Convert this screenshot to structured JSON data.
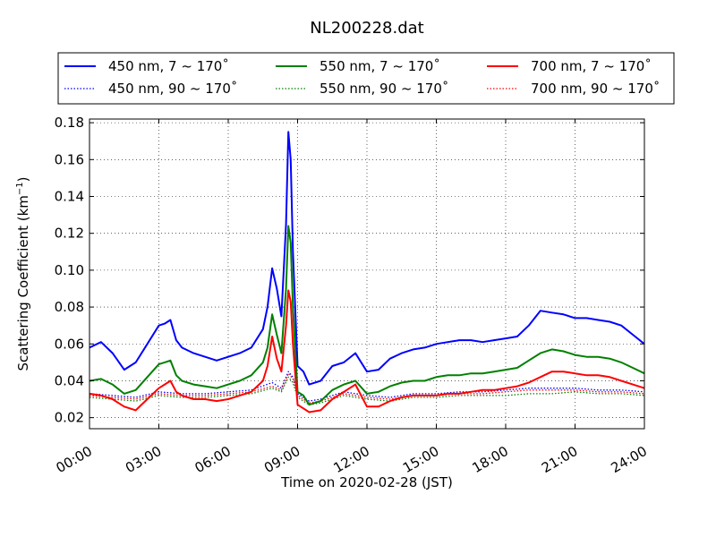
{
  "chart_data": {
    "type": "line",
    "title": "NL200228.dat",
    "xlabel": "Time on 2020-02-28 (JST)",
    "ylabel": "Scattering Coefficient (km",
    "ylabel_sup": "−1",
    "ylabel_close": ")",
    "xlim": [
      0,
      24
    ],
    "ylim": [
      0.014,
      0.182
    ],
    "grid": true,
    "legend_placement": "top",
    "x_ticks": [
      0,
      3,
      6,
      9,
      12,
      15,
      18,
      21,
      24
    ],
    "x_tick_labels": [
      "00:00",
      "03:00",
      "06:00",
      "09:00",
      "12:00",
      "15:00",
      "18:00",
      "21:00",
      "24:00"
    ],
    "y_ticks": [
      0.02,
      0.04,
      0.06,
      0.08,
      0.1,
      0.12,
      0.14,
      0.16,
      0.18
    ],
    "y_tick_labels": [
      "0.02",
      "0.04",
      "0.06",
      "0.08",
      "0.10",
      "0.12",
      "0.14",
      "0.16",
      "0.18"
    ],
    "series": [
      {
        "name": "450 nm, 7 ~ 170˚",
        "color": "#0000ff",
        "style": "solid",
        "x": [
          0,
          0.5,
          1,
          1.5,
          2,
          2.5,
          3,
          3.25,
          3.5,
          3.75,
          4,
          4.5,
          5,
          5.5,
          6,
          6.5,
          7,
          7.5,
          7.7,
          7.9,
          8.1,
          8.3,
          8.5,
          8.6,
          8.7,
          8.8,
          9,
          9.25,
          9.5,
          10,
          10.5,
          11,
          11.5,
          12,
          12.5,
          13,
          13.5,
          14,
          14.5,
          15,
          15.5,
          16,
          16.5,
          17,
          17.5,
          18,
          18.5,
          19,
          19.5,
          20,
          20.5,
          21,
          21.5,
          22,
          22.5,
          23,
          23.5,
          24
        ],
        "y": [
          0.058,
          0.061,
          0.055,
          0.046,
          0.05,
          0.06,
          0.07,
          0.071,
          0.073,
          0.062,
          0.058,
          0.055,
          0.053,
          0.051,
          0.053,
          0.055,
          0.058,
          0.068,
          0.08,
          0.101,
          0.09,
          0.075,
          0.125,
          0.175,
          0.16,
          0.11,
          0.048,
          0.045,
          0.038,
          0.04,
          0.048,
          0.05,
          0.055,
          0.045,
          0.046,
          0.052,
          0.055,
          0.057,
          0.058,
          0.06,
          0.061,
          0.062,
          0.062,
          0.061,
          0.062,
          0.063,
          0.064,
          0.07,
          0.078,
          0.077,
          0.076,
          0.074,
          0.074,
          0.073,
          0.072,
          0.07,
          0.065,
          0.06
        ]
      },
      {
        "name": "450 nm, 90 ~ 170˚",
        "color": "#0000ff",
        "style": "dotted",
        "x": [
          0,
          1,
          2,
          3,
          4,
          5,
          6,
          7,
          7.9,
          8.3,
          8.6,
          8.8,
          9,
          9.5,
          10,
          11,
          12,
          13,
          14,
          15,
          16,
          17,
          18,
          19,
          20,
          21,
          22,
          23,
          24
        ],
        "y": [
          0.033,
          0.032,
          0.031,
          0.034,
          0.033,
          0.033,
          0.034,
          0.035,
          0.039,
          0.036,
          0.045,
          0.042,
          0.033,
          0.029,
          0.03,
          0.034,
          0.032,
          0.031,
          0.033,
          0.033,
          0.034,
          0.034,
          0.035,
          0.036,
          0.036,
          0.036,
          0.035,
          0.035,
          0.034
        ]
      },
      {
        "name": "550 nm, 7 ~ 170˚",
        "color": "#008000",
        "style": "solid",
        "x": [
          0,
          0.5,
          1,
          1.5,
          2,
          2.5,
          3,
          3.25,
          3.5,
          3.75,
          4,
          4.5,
          5,
          5.5,
          6,
          6.5,
          7,
          7.5,
          7.7,
          7.9,
          8.1,
          8.3,
          8.5,
          8.6,
          8.7,
          8.8,
          9,
          9.25,
          9.5,
          10,
          10.5,
          11,
          11.5,
          12,
          12.5,
          13,
          13.5,
          14,
          14.5,
          15,
          15.5,
          16,
          16.5,
          17,
          17.5,
          18,
          18.5,
          19,
          19.5,
          20,
          20.5,
          21,
          21.5,
          22,
          22.5,
          23,
          23.5,
          24
        ],
        "y": [
          0.04,
          0.041,
          0.038,
          0.033,
          0.035,
          0.042,
          0.049,
          0.05,
          0.051,
          0.043,
          0.04,
          0.038,
          0.037,
          0.036,
          0.038,
          0.04,
          0.043,
          0.05,
          0.058,
          0.076,
          0.065,
          0.055,
          0.09,
          0.124,
          0.115,
          0.08,
          0.034,
          0.032,
          0.027,
          0.029,
          0.035,
          0.038,
          0.04,
          0.033,
          0.034,
          0.037,
          0.039,
          0.04,
          0.04,
          0.042,
          0.043,
          0.043,
          0.044,
          0.044,
          0.045,
          0.046,
          0.047,
          0.051,
          0.055,
          0.057,
          0.056,
          0.054,
          0.053,
          0.053,
          0.052,
          0.05,
          0.047,
          0.044
        ]
      },
      {
        "name": "550 nm, 90 ~ 170˚",
        "color": "#008000",
        "style": "dotted",
        "x": [
          0,
          1,
          2,
          3,
          4,
          5,
          6,
          7,
          7.9,
          8.3,
          8.6,
          8.8,
          9,
          9.5,
          10,
          11,
          12,
          13,
          14,
          15,
          16,
          17,
          18,
          19,
          20,
          21,
          22,
          23,
          24
        ],
        "y": [
          0.031,
          0.03,
          0.029,
          0.032,
          0.031,
          0.031,
          0.032,
          0.033,
          0.036,
          0.034,
          0.042,
          0.039,
          0.031,
          0.027,
          0.028,
          0.032,
          0.03,
          0.029,
          0.031,
          0.031,
          0.032,
          0.032,
          0.032,
          0.033,
          0.033,
          0.034,
          0.033,
          0.033,
          0.032
        ]
      },
      {
        "name": "700 nm, 7 ~ 170˚",
        "color": "#ff0000",
        "style": "solid",
        "x": [
          0,
          0.5,
          1,
          1.5,
          2,
          2.5,
          3,
          3.25,
          3.5,
          3.75,
          4,
          4.5,
          5,
          5.5,
          6,
          6.5,
          7,
          7.5,
          7.7,
          7.9,
          8.1,
          8.3,
          8.5,
          8.6,
          8.7,
          8.8,
          9,
          9.25,
          9.5,
          10,
          10.5,
          11,
          11.5,
          12,
          12.5,
          13,
          13.5,
          14,
          14.5,
          15,
          15.5,
          16,
          16.5,
          17,
          17.5,
          18,
          18.5,
          19,
          19.5,
          20,
          20.5,
          21,
          21.5,
          22,
          22.5,
          23,
          23.5,
          24
        ],
        "y": [
          0.033,
          0.032,
          0.03,
          0.026,
          0.024,
          0.03,
          0.036,
          0.038,
          0.04,
          0.034,
          0.032,
          0.03,
          0.03,
          0.029,
          0.03,
          0.032,
          0.034,
          0.04,
          0.048,
          0.064,
          0.052,
          0.045,
          0.07,
          0.089,
          0.083,
          0.06,
          0.027,
          0.025,
          0.023,
          0.024,
          0.03,
          0.034,
          0.038,
          0.026,
          0.026,
          0.029,
          0.031,
          0.032,
          0.032,
          0.032,
          0.033,
          0.033,
          0.034,
          0.035,
          0.035,
          0.036,
          0.037,
          0.039,
          0.042,
          0.045,
          0.045,
          0.044,
          0.043,
          0.043,
          0.042,
          0.04,
          0.038,
          0.036
        ]
      },
      {
        "name": "700 nm, 90 ~ 170˚",
        "color": "#ff0000",
        "style": "dotted",
        "x": [
          0,
          1,
          2,
          3,
          4,
          5,
          6,
          7,
          7.9,
          8.3,
          8.6,
          8.8,
          9,
          9.5,
          10,
          11,
          12,
          13,
          14,
          15,
          16,
          17,
          18,
          19,
          20,
          21,
          22,
          23,
          24
        ],
        "y": [
          0.032,
          0.031,
          0.03,
          0.033,
          0.032,
          0.032,
          0.033,
          0.034,
          0.037,
          0.035,
          0.044,
          0.041,
          0.032,
          0.028,
          0.029,
          0.033,
          0.031,
          0.03,
          0.032,
          0.032,
          0.033,
          0.033,
          0.034,
          0.035,
          0.035,
          0.035,
          0.034,
          0.034,
          0.033
        ]
      }
    ]
  }
}
